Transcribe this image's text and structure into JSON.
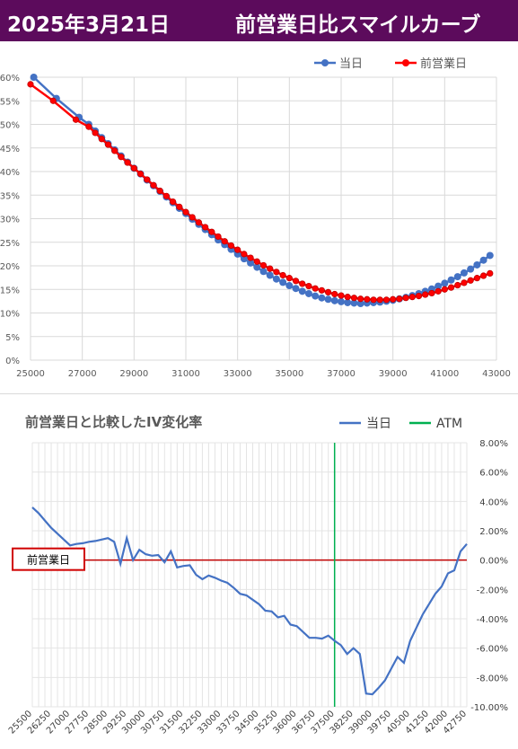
{
  "header": {
    "date": "2025年3月21日",
    "title": "前営業日比スマイルカーブ"
  },
  "colors": {
    "header_bg": "#5c0b5c",
    "today": "#4472c4",
    "prev": "#ff0000",
    "atm": "#00b050",
    "iv_line": "#4472c4",
    "zero_line": "#c00000"
  },
  "chart_data": [
    {
      "type": "line",
      "xlim": [
        25000,
        43000
      ],
      "ylim": [
        0,
        60
      ],
      "x_ticks": [
        "25000",
        "27000",
        "29000",
        "31000",
        "33000",
        "35000",
        "37000",
        "39000",
        "41000",
        "43000"
      ],
      "y_ticks": [
        "0%",
        "5%",
        "10%",
        "15%",
        "20%",
        "25%",
        "30%",
        "35%",
        "40%",
        "45%",
        "50%",
        "55%",
        "60%"
      ],
      "legend_position": "top-right",
      "series": [
        {
          "name": "当日",
          "points": [
            [
              25125,
              60.0
            ],
            [
              26000,
              55.5
            ],
            [
              26875,
              51.5
            ],
            [
              27250,
              50.0
            ],
            [
              27500,
              48.6
            ],
            [
              27750,
              47.2
            ],
            [
              28000,
              45.9
            ],
            [
              28250,
              44.6
            ],
            [
              28500,
              43.3
            ],
            [
              28750,
              42.0
            ],
            [
              29000,
              40.7
            ],
            [
              29250,
              39.5
            ],
            [
              29500,
              38.2
            ],
            [
              29750,
              37.0
            ],
            [
              30000,
              35.8
            ],
            [
              30250,
              34.6
            ],
            [
              30500,
              33.4
            ],
            [
              30750,
              32.2
            ],
            [
              31000,
              31.1
            ],
            [
              31250,
              29.9
            ],
            [
              31500,
              28.8
            ],
            [
              31750,
              27.7
            ],
            [
              32000,
              26.6
            ],
            [
              32250,
              25.5
            ],
            [
              32500,
              24.5
            ],
            [
              32750,
              23.5
            ],
            [
              33000,
              22.5
            ],
            [
              33250,
              21.5
            ],
            [
              33500,
              20.6
            ],
            [
              33750,
              19.7
            ],
            [
              34000,
              18.8
            ],
            [
              34250,
              18.0
            ],
            [
              34500,
              17.2
            ],
            [
              34750,
              16.5
            ],
            [
              35000,
              15.8
            ],
            [
              35250,
              15.2
            ],
            [
              35500,
              14.6
            ],
            [
              35750,
              14.1
            ],
            [
              36000,
              13.6
            ],
            [
              36250,
              13.2
            ],
            [
              36500,
              12.9
            ],
            [
              36750,
              12.6
            ],
            [
              37000,
              12.4
            ],
            [
              37250,
              12.2
            ],
            [
              37500,
              12.1
            ],
            [
              37750,
              12.0
            ],
            [
              38000,
              12.1
            ],
            [
              38250,
              12.2
            ],
            [
              38500,
              12.3
            ],
            [
              38750,
              12.5
            ],
            [
              39000,
              12.7
            ],
            [
              39250,
              13.0
            ],
            [
              39500,
              13.3
            ],
            [
              39750,
              13.7
            ],
            [
              40000,
              14.1
            ],
            [
              40250,
              14.6
            ],
            [
              40500,
              15.1
            ],
            [
              40750,
              15.7
            ],
            [
              41000,
              16.3
            ],
            [
              41250,
              17.0
            ],
            [
              41500,
              17.7
            ],
            [
              41750,
              18.5
            ],
            [
              42000,
              19.3
            ],
            [
              42250,
              20.2
            ],
            [
              42500,
              21.2
            ],
            [
              42750,
              22.2
            ]
          ]
        },
        {
          "name": "前営業日",
          "points": [
            [
              25000,
              58.5
            ],
            [
              25875,
              55.0
            ],
            [
              26750,
              51.0
            ],
            [
              27250,
              49.5
            ],
            [
              27500,
              48.2
            ],
            [
              27750,
              46.9
            ],
            [
              28000,
              45.7
            ],
            [
              28250,
              44.4
            ],
            [
              28500,
              43.1
            ],
            [
              28750,
              41.9
            ],
            [
              29000,
              40.7
            ],
            [
              29250,
              39.5
            ],
            [
              29500,
              38.3
            ],
            [
              29750,
              37.1
            ],
            [
              30000,
              35.9
            ],
            [
              30250,
              34.8
            ],
            [
              30500,
              33.6
            ],
            [
              30750,
              32.5
            ],
            [
              31000,
              31.4
            ],
            [
              31250,
              30.3
            ],
            [
              31500,
              29.2
            ],
            [
              31750,
              28.2
            ],
            [
              32000,
              27.2
            ],
            [
              32250,
              26.2
            ],
            [
              32500,
              25.2
            ],
            [
              32750,
              24.3
            ],
            [
              33000,
              23.4
            ],
            [
              33250,
              22.5
            ],
            [
              33500,
              21.7
            ],
            [
              33750,
              20.9
            ],
            [
              34000,
              20.1
            ],
            [
              34250,
              19.4
            ],
            [
              34500,
              18.7
            ],
            [
              34750,
              18.0
            ],
            [
              35000,
              17.4
            ],
            [
              35250,
              16.8
            ],
            [
              35500,
              16.2
            ],
            [
              35750,
              15.7
            ],
            [
              36000,
              15.2
            ],
            [
              36250,
              14.8
            ],
            [
              36500,
              14.4
            ],
            [
              36750,
              14.0
            ],
            [
              37000,
              13.7
            ],
            [
              37250,
              13.4
            ],
            [
              37500,
              13.2
            ],
            [
              37750,
              13.0
            ],
            [
              38000,
              12.9
            ],
            [
              38250,
              12.8
            ],
            [
              38500,
              12.8
            ],
            [
              38750,
              12.8
            ],
            [
              39000,
              12.9
            ],
            [
              39250,
              13.0
            ],
            [
              39500,
              13.2
            ],
            [
              39750,
              13.4
            ],
            [
              40000,
              13.6
            ],
            [
              40250,
              13.9
            ],
            [
              40500,
              14.2
            ],
            [
              40750,
              14.6
            ],
            [
              41000,
              15.0
            ],
            [
              41250,
              15.4
            ],
            [
              41500,
              15.9
            ],
            [
              41750,
              16.4
            ],
            [
              42000,
              16.9
            ],
            [
              42250,
              17.4
            ],
            [
              42500,
              17.9
            ],
            [
              42750,
              18.4
            ]
          ]
        }
      ]
    },
    {
      "type": "line",
      "title": "前営業日と比較したIV変化率",
      "ylim": [
        -10,
        8
      ],
      "y_ticks": [
        "8.00%",
        "6.00%",
        "4.00%",
        "2.00%",
        "0.00%",
        "-2.00%",
        "-4.00%",
        "-6.00%",
        "-8.00%",
        "-10.00%"
      ],
      "categories": [
        "25500",
        "25750",
        "26000",
        "26250",
        "26500",
        "26750",
        "27000",
        "27250",
        "27500",
        "27750",
        "28000",
        "28250",
        "28500",
        "28750",
        "29000",
        "29250",
        "29500",
        "29750",
        "30000",
        "30250",
        "30500",
        "30750",
        "31000",
        "31250",
        "31500",
        "31750",
        "32000",
        "32250",
        "32500",
        "32750",
        "33000",
        "33250",
        "33500",
        "33750",
        "34000",
        "34250",
        "34500",
        "34750",
        "35000",
        "35250",
        "35500",
        "35750",
        "36000",
        "36250",
        "36500",
        "36750",
        "37000",
        "37250",
        "37500",
        "37750",
        "38000",
        "38250",
        "38500",
        "38750",
        "39000",
        "39250",
        "39500",
        "39750",
        "40000",
        "40250",
        "40500",
        "40750",
        "41000",
        "41250",
        "41500",
        "41750",
        "42000",
        "42250",
        "42500",
        "42750"
      ],
      "tick_labels": [
        "25500",
        "26250",
        "27000",
        "27750",
        "28500",
        "29250",
        "30000",
        "30750",
        "31500",
        "32250",
        "33000",
        "33750",
        "34500",
        "35250",
        "36000",
        "36750",
        "37500",
        "38250",
        "39000",
        "39750",
        "40500",
        "41250",
        "42000",
        "42750"
      ],
      "legend_position": "top-right",
      "atm": "37500",
      "zero_label": "前営業日",
      "series": [
        {
          "name": "当日",
          "values": [
            3.6,
            3.2,
            2.7,
            2.2,
            1.8,
            1.4,
            1.0,
            1.1,
            1.15,
            1.25,
            1.3,
            1.4,
            1.5,
            1.25,
            -0.25,
            1.5,
            0.0,
            0.7,
            0.4,
            0.3,
            0.35,
            -0.15,
            0.6,
            -0.5,
            -0.4,
            -0.35,
            -1.0,
            -1.3,
            -1.05,
            -1.2,
            -1.4,
            -1.55,
            -1.9,
            -2.3,
            -2.4,
            -2.7,
            -3.0,
            -3.45,
            -3.5,
            -3.9,
            -3.8,
            -4.4,
            -4.5,
            -4.9,
            -5.3,
            -5.3,
            -5.35,
            -5.15,
            -5.5,
            -5.8,
            -6.4,
            -6.0,
            -6.4,
            -9.1,
            -9.15,
            -8.7,
            -8.2,
            -7.4,
            -6.6,
            -7.0,
            -5.5,
            -4.6,
            -3.7,
            -3.0,
            -2.3,
            -1.8,
            -0.9,
            -0.7,
            0.6,
            1.1
          ]
        }
      ]
    }
  ],
  "legend_top": [
    {
      "label": "当日"
    },
    {
      "label": "前営業日"
    }
  ],
  "legend_bottom": [
    {
      "label": "当日"
    },
    {
      "label": "ATM"
    }
  ]
}
